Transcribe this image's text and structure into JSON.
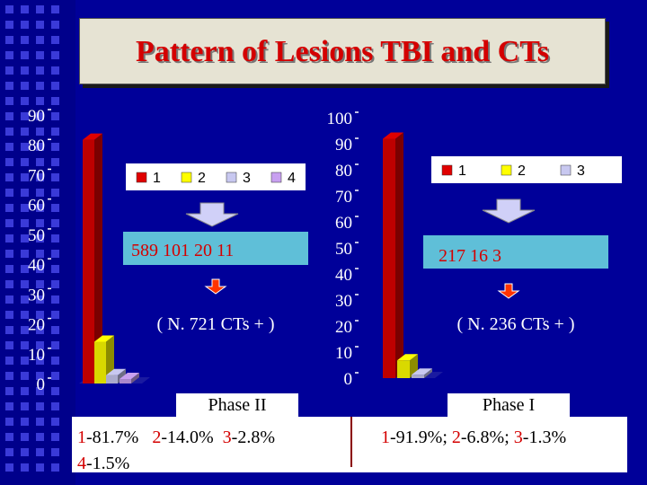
{
  "title": "Pattern of Lesions TBI  and CTs",
  "colors": {
    "c1": "#e00000",
    "c2": "#ffff00",
    "c3": "#c8c8f0",
    "c4": "#c8a0f0"
  },
  "chart_data": [
    {
      "type": "bar",
      "categories": [
        "1",
        "2",
        "3",
        "4"
      ],
      "values": [
        81.7,
        14.0,
        2.8,
        1.5
      ],
      "ylim": [
        0,
        90
      ],
      "yticks": [
        "0",
        "10",
        "20",
        "30",
        "40",
        "50",
        "60",
        "70",
        "80",
        "90"
      ],
      "legend": [
        "1",
        "2",
        "3",
        "4"
      ],
      "counts": "589   101     20     11",
      "total": "( N. 721 CTs + )",
      "phase": "Phase II",
      "pct": [
        {
          "k": "1",
          "v": "-81.7%"
        },
        {
          "k": "2",
          "v": "-14.0%"
        },
        {
          "k": "3",
          "v": "-2.8%"
        },
        {
          "k": "4",
          "v": "-1.5%"
        }
      ]
    },
    {
      "type": "bar",
      "categories": [
        "1",
        "2",
        "3"
      ],
      "values": [
        91.9,
        6.8,
        1.3
      ],
      "ylim": [
        0,
        100
      ],
      "yticks": [
        "0",
        "10",
        "20",
        "30",
        "40",
        "50",
        "60",
        "70",
        "80",
        "90",
        "100"
      ],
      "legend": [
        "1",
        "2",
        "3"
      ],
      "counts": "217        16             3",
      "total": "( N. 236 CTs + )",
      "phase": "Phase I",
      "pct": [
        {
          "k": "1",
          "v": "-91.9%; "
        },
        {
          "k": "2",
          "v": "-6.8%; "
        },
        {
          "k": "3",
          "v": "-1.3%"
        }
      ]
    }
  ]
}
